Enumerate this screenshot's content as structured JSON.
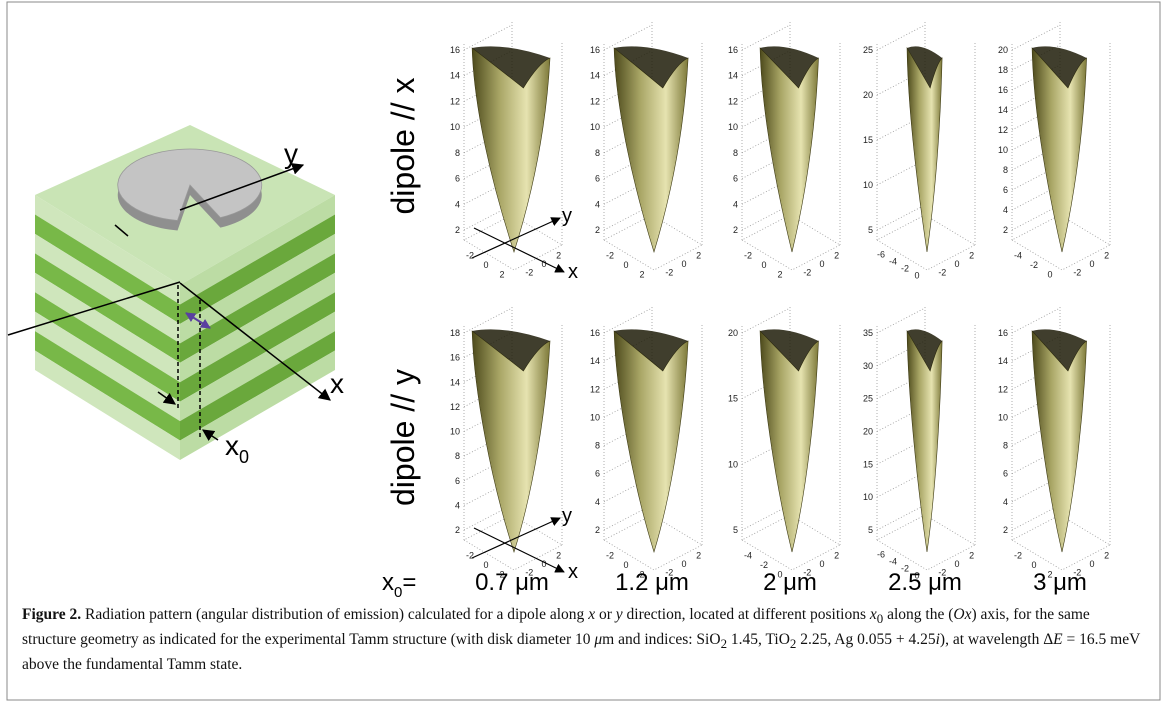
{
  "schematic": {
    "axis_y": "y",
    "axis_x": "x",
    "offset_label": {
      "base": "x",
      "sub": "0"
    }
  },
  "rows": [
    {
      "label": "dipole // x",
      "panels": [
        {
          "zticks": [
            2,
            4,
            6,
            8,
            10,
            12,
            14,
            16
          ],
          "xticks": [
            -2,
            0,
            2
          ],
          "yticks": [
            -2,
            0,
            2
          ],
          "axes": [
            "y",
            "x"
          ]
        },
        {
          "zticks": [
            2,
            4,
            6,
            8,
            10,
            12,
            14,
            16
          ],
          "xticks": [
            -2,
            0,
            2
          ],
          "yticks": [
            -2,
            0,
            2
          ]
        },
        {
          "zticks": [
            2,
            4,
            6,
            8,
            10,
            12,
            14,
            16
          ],
          "xticks": [
            -2,
            0,
            2
          ],
          "yticks": [
            -2,
            0,
            2
          ]
        },
        {
          "zticks": [
            5,
            10,
            15,
            20,
            25
          ],
          "xticks": [
            -6,
            -4,
            -2,
            0
          ],
          "yticks": [
            -2,
            0,
            2
          ]
        },
        {
          "zticks": [
            2,
            4,
            6,
            8,
            10,
            12,
            14,
            16,
            18,
            20
          ],
          "xticks": [
            -4,
            -2,
            0
          ],
          "yticks": [
            -2,
            0,
            2
          ]
        }
      ]
    },
    {
      "label": "dipole // y",
      "panels": [
        {
          "zticks": [
            2,
            4,
            6,
            8,
            10,
            12,
            14,
            16,
            18
          ],
          "xticks": [
            -2,
            0,
            2
          ],
          "yticks": [
            -2,
            0,
            2
          ],
          "axes": [
            "y",
            "x"
          ]
        },
        {
          "zticks": [
            2,
            4,
            6,
            8,
            10,
            12,
            14,
            16
          ],
          "xticks": [
            -2,
            0,
            2
          ],
          "yticks": [
            -2,
            0,
            2
          ]
        },
        {
          "zticks": [
            5,
            10,
            15,
            20
          ],
          "xticks": [
            -4,
            -2,
            0
          ],
          "yticks": [
            -2,
            0,
            2
          ]
        },
        {
          "zticks": [
            5,
            10,
            15,
            20,
            25,
            30,
            35
          ],
          "xticks": [
            -6,
            -4,
            -2,
            0
          ],
          "yticks": [
            -2,
            0,
            2
          ]
        },
        {
          "zticks": [
            2,
            4,
            6,
            8,
            10,
            12,
            14,
            16
          ],
          "xticks": [
            -2,
            0,
            2
          ],
          "yticks": [
            -2,
            0,
            2
          ]
        }
      ]
    }
  ],
  "positions": {
    "label": {
      "base": "x",
      "sub": "0",
      "suffix": "="
    },
    "values": [
      "0.7 μm",
      "1.2 μm",
      "2 μm",
      "2.5 μm",
      "3 μm"
    ]
  },
  "caption": {
    "label": "Figure 2.",
    "parts": [
      " Radiation pattern (angular distribution of emission) calculated for a dipole along ",
      "x",
      " or ",
      "y",
      " direction, located at different positions ",
      "x",
      "0",
      " along the (",
      "Ox",
      ") axis, for the same structure geometry as indicated for the experimental Tamm structure (with disk diameter 10 ",
      "μ",
      "m and indices: SiO",
      "2",
      " 1.45, TiO",
      "2",
      " 2.25, Ag 0.055 + 4.25",
      "i",
      "), at wavelength Δ",
      "E",
      " = 16.5 meV above the fundamental Tamm state."
    ]
  }
}
